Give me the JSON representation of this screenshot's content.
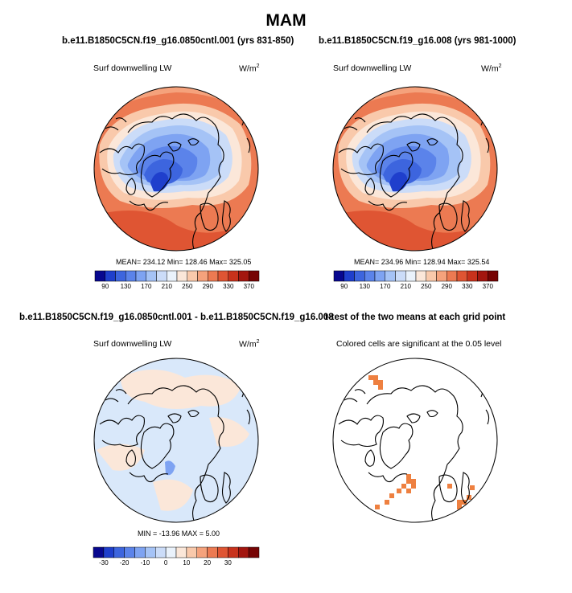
{
  "title": "MAM",
  "panels": [
    {
      "case": "b.e11.B1850C5CN.f19_g16.0850cntl.001 (yrs 831-850)",
      "variable": "Surf downwelling LW",
      "units": "W/m",
      "units_sup": "2",
      "stats": "MEAN= 234.12  Min= 128.46  Max= 325.05"
    },
    {
      "case": "b.e11.B1850C5CN.f19_g16.008 (yrs 981-1000)",
      "variable": "Surf downwelling LW",
      "units": "W/m",
      "units_sup": "2",
      "stats": "MEAN= 234.96  Min= 128.94  Max= 325.54"
    },
    {
      "case": "b.e11.B1850C5CN.f19_g16.0850cntl.001 - b.e11.B1850C5CN.f19_g16.008",
      "variable": "Surf downwelling LW",
      "units": "W/m",
      "units_sup": "2",
      "stats": "MIN = -13.96  MAX =   5.00"
    },
    {
      "case": "t-test of the two means at each grid point",
      "variable": "Colored cells are significant at the 0.05 level"
    }
  ],
  "colorbar_abs": {
    "colors": [
      "#08088f",
      "#1f3fcc",
      "#3d65de",
      "#5b83ea",
      "#7ea3f2",
      "#a5c3f6",
      "#cbdcf8",
      "#eaf2fb",
      "#fbe7d9",
      "#f9c9ab",
      "#f5a27c",
      "#ec7a52",
      "#df5533",
      "#c8321c",
      "#a3160f",
      "#760404"
    ],
    "labels": [
      "90",
      "130",
      "170",
      "210",
      "250",
      "290",
      "330",
      "370"
    ]
  },
  "colorbar_diff": {
    "colors": [
      "#08088f",
      "#1f3fcc",
      "#3d65de",
      "#5b83ea",
      "#7ea3f2",
      "#a5c3f6",
      "#cbdcf8",
      "#eaf2fb",
      "#fbe7d9",
      "#f9c9ab",
      "#f5a27c",
      "#ec7a52",
      "#df5533",
      "#c8321c",
      "#a3160f",
      "#760404"
    ],
    "labels": [
      "-30",
      "-20",
      "-10",
      "0",
      "10",
      "20",
      "30"
    ]
  },
  "colors": {
    "sig_cell": "#ee8040",
    "diff_pos": "#fbe7d9",
    "diff_neg": "#d9e8fa"
  }
}
